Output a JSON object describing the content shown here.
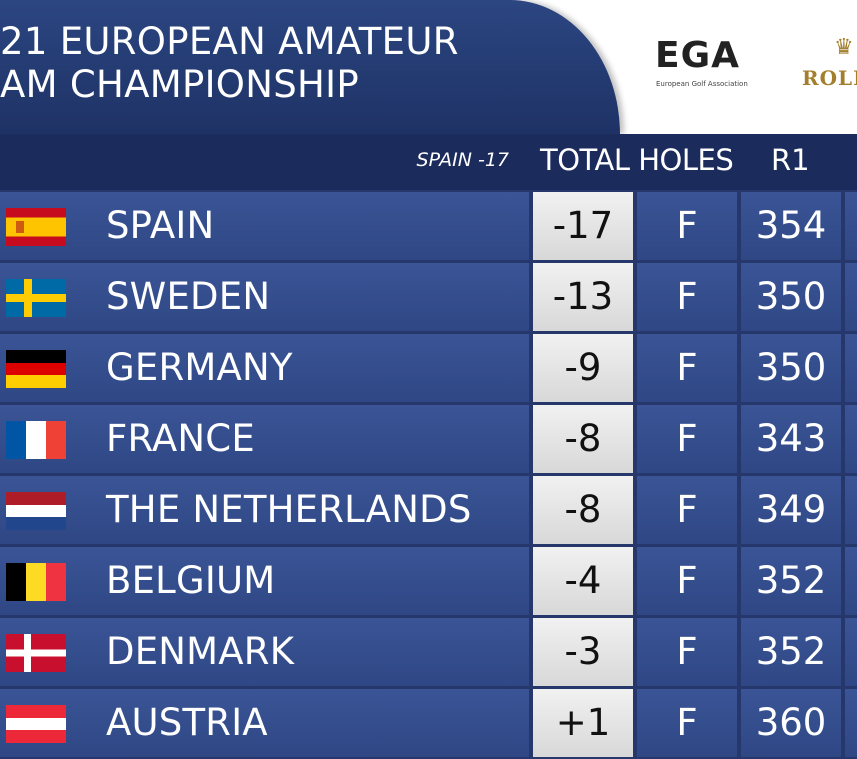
{
  "header": {
    "title_line1": "21 EUROPEAN AMATEUR",
    "title_line2": "AM CHAMPIONSHIP",
    "ega_logo": "EGA",
    "ega_subtitle": "European Golf Association",
    "rolex_logo": "ROLE"
  },
  "columns": {
    "leader": "SPAIN -17",
    "total_holes": "TOTAL HOLES",
    "r1": "R1"
  },
  "colors": {
    "panel": "#26386b",
    "row": "#34508e",
    "score_cell": "#e6e6e6",
    "rolex_gold": "#a37e2c"
  },
  "rows": [
    {
      "flag": "spain-flag",
      "team": "SPAIN",
      "total": "-17",
      "holes": "F",
      "r1": "354"
    },
    {
      "flag": "sweden-flag",
      "team": "SWEDEN",
      "total": "-13",
      "holes": "F",
      "r1": "350"
    },
    {
      "flag": "germany-flag",
      "team": "GERMANY",
      "total": "-9",
      "holes": "F",
      "r1": "350"
    },
    {
      "flag": "france-flag",
      "team": "FRANCE",
      "total": "-8",
      "holes": "F",
      "r1": "343"
    },
    {
      "flag": "netherlands-flag",
      "team": "THE NETHERLANDS",
      "total": "-8",
      "holes": "F",
      "r1": "349"
    },
    {
      "flag": "belgium-flag",
      "team": "BELGIUM",
      "total": "-4",
      "holes": "F",
      "r1": "352"
    },
    {
      "flag": "denmark-flag",
      "team": "DENMARK",
      "total": "-3",
      "holes": "F",
      "r1": "352"
    },
    {
      "flag": "austria-flag",
      "team": "AUSTRIA",
      "total": "+1",
      "holes": "F",
      "r1": "360"
    }
  ]
}
